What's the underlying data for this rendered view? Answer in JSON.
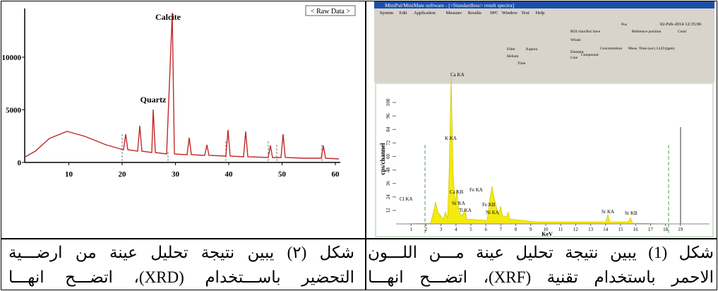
{
  "xrd": {
    "legend": "< Raw Data >",
    "peaks": [
      "Calcite",
      "Quartz"
    ],
    "xticks": [
      10,
      20,
      30,
      40,
      50,
      60
    ],
    "yticks": [
      0,
      5000,
      10000
    ]
  },
  "xrf": {
    "window_title": "MiniPal/MiniMate software - [<Standardless> result spectra]",
    "menu": [
      "System",
      "Edit",
      "Application",
      "Measure",
      "Results",
      "SPC",
      "Window",
      "Text",
      "Help"
    ],
    "date": "02-Feb-2014 12:35:06",
    "toolbar_labels": [
      "Pos",
      "Reference position",
      "Cond",
      "ROI chan",
      "Roi Save",
      "Whole",
      "Element",
      "Line",
      "Compound",
      "Concentration",
      "Meas. Time (sec)",
      "LLD (ppm)",
      "Filter",
      "Kapton",
      "Helium",
      "Time"
    ],
    "y_label": "cps/channel",
    "x_label": "KeV",
    "xticks": [
      1,
      2,
      3,
      4,
      5,
      6,
      7,
      8,
      9,
      10,
      11,
      12,
      13,
      14,
      15,
      16,
      17,
      18,
      19
    ],
    "yticks": [
      12,
      24,
      36,
      48,
      60,
      72,
      84,
      96,
      108
    ],
    "peaks": [
      "Ca KA",
      "K KA",
      "Cl KA",
      "Ca KB",
      "Sc KA",
      "Ti KA",
      "Fe KA",
      "Fe KB",
      "Ni KA",
      "Sr KA",
      "Sr KB"
    ]
  },
  "captions": [
    {
      "lines": [
        "شكل (1) يبين نتيجة تحليل عينة مـــن اللـــون",
        "الاحمر باستخدام تقنية (XRF)، اتضـــح انهـــا"
      ]
    },
    {
      "lines": [
        "شكل (٢) يبين نتيجة تحليل عينة من ارضـــية",
        "التحضير باســـتخدام (XRD)، اتضـــح انهـــا"
      ]
    }
  ]
}
